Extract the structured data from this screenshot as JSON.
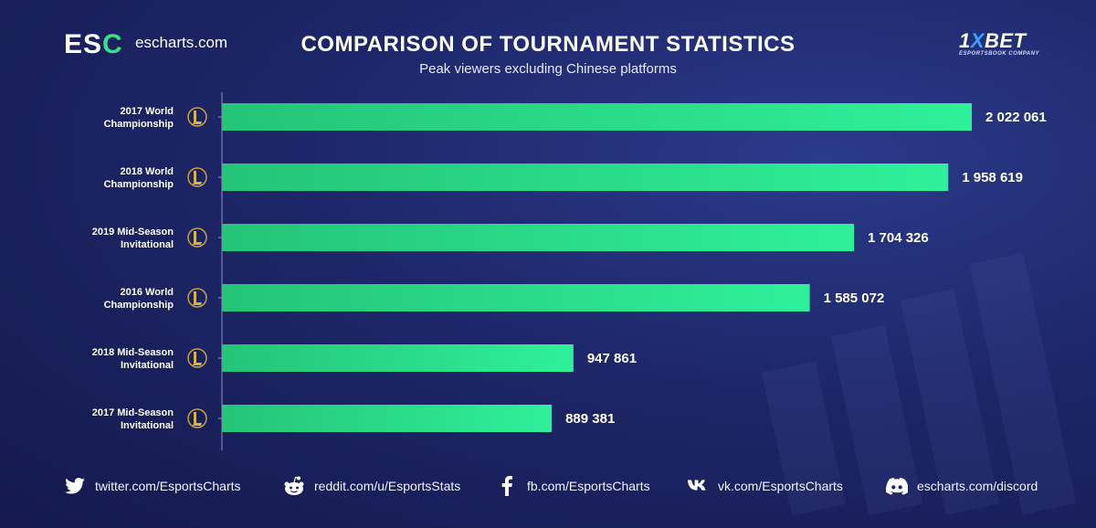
{
  "header": {
    "logo_text_a": "ES",
    "logo_text_b": "C",
    "site": "escharts.com",
    "title": "COMPARISON OF TOURNAMENT STATISTICS",
    "subtitle": "Peak viewers excluding Chinese platforms",
    "sponsor_a": "1",
    "sponsor_b": "X",
    "sponsor_c": "BET",
    "sponsor_tag": "ESPORTSBOOK COMPANY"
  },
  "colors": {
    "bar_start": "#25c477",
    "bar_end": "#2ff09a",
    "background": "#1b2463",
    "axis": "#8a93c4"
  },
  "chart_data": {
    "type": "bar",
    "orientation": "horizontal",
    "categories": [
      [
        "2017 World",
        "Championship"
      ],
      [
        "2018 World",
        "Championship"
      ],
      [
        "2019 Mid-Season",
        "Invitational"
      ],
      [
        "2016 World",
        "Championship"
      ],
      [
        "2018 Mid-Season",
        "Invitational"
      ],
      [
        "2017 Mid-Season",
        "Invitational"
      ]
    ],
    "values": [
      2022061,
      1958619,
      1704326,
      1585072,
      947861,
      889381
    ],
    "value_labels": [
      "2 022 061",
      "1 958 619",
      "1 704 326",
      "1 585 072",
      "947 861",
      "889 381"
    ],
    "category_icon": "league-of-legends-icon",
    "xlim": [
      0,
      2022061
    ],
    "grid": false
  },
  "footer": [
    {
      "icon": "twitter-icon",
      "text": "twitter.com/EsportsCharts"
    },
    {
      "icon": "reddit-icon",
      "text": "reddit.com/u/EsportsStats"
    },
    {
      "icon": "facebook-icon",
      "text": "fb.com/EsportsCharts"
    },
    {
      "icon": "vk-icon",
      "text": "vk.com/EsportsCharts"
    },
    {
      "icon": "discord-icon",
      "text": "escharts.com/discord"
    }
  ]
}
